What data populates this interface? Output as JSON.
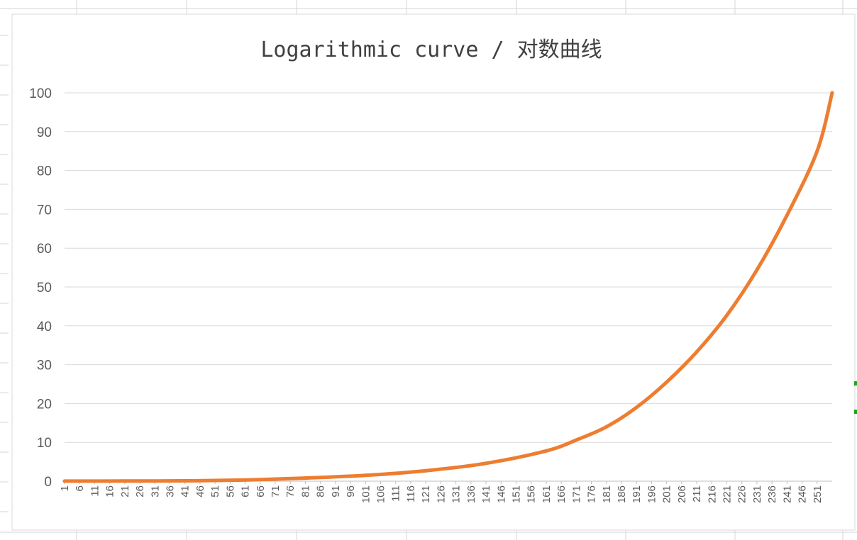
{
  "chart_data": {
    "type": "line",
    "title": "Logarithmic curve / 对数曲线",
    "xlabel": "",
    "ylabel": "",
    "x_tick_labels": [
      "1",
      "6",
      "11",
      "16",
      "21",
      "26",
      "31",
      "36",
      "41",
      "46",
      "51",
      "56",
      "61",
      "66",
      "71",
      "76",
      "81",
      "86",
      "91",
      "96",
      "101",
      "106",
      "111",
      "116",
      "121",
      "126",
      "131",
      "136",
      "141",
      "146",
      "151",
      "156",
      "161",
      "166",
      "171",
      "176",
      "181",
      "186",
      "191",
      "196",
      "201",
      "206",
      "211",
      "216",
      "221",
      "226",
      "231",
      "236",
      "241",
      "246",
      "251"
    ],
    "y_tick_labels": [
      "0",
      "10",
      "20",
      "30",
      "40",
      "50",
      "60",
      "70",
      "80",
      "90",
      "100"
    ],
    "xlim": [
      1,
      256
    ],
    "ylim": [
      0,
      100
    ],
    "grid": true,
    "legend": "none",
    "series": [
      {
        "color": "#ED7D31",
        "x": [
          1,
          21,
          41,
          61,
          81,
          101,
          121,
          141,
          161,
          171,
          181,
          191,
          201,
          211,
          221,
          231,
          241,
          251,
          256
        ],
        "values": [
          0.01,
          0.03,
          0.1,
          0.3,
          0.8,
          1.5,
          2.7,
          4.6,
          7.8,
          10.6,
          14.0,
          19.0,
          25.5,
          33.3,
          42.7,
          54.4,
          68.5,
          85.0,
          100
        ]
      }
    ]
  }
}
